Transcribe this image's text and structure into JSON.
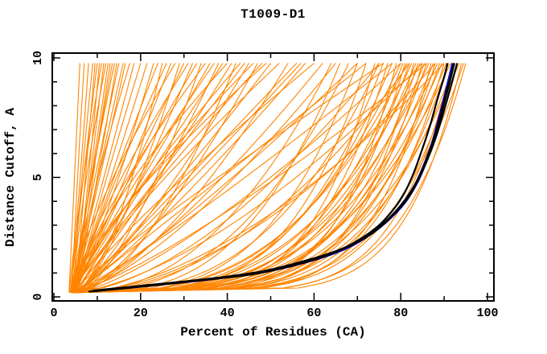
{
  "chart_data": {
    "type": "line",
    "title": "T1009-D1",
    "xlabel": "Percent of Residues (CA)",
    "ylabel": "Distance Cutoff, A",
    "xlim": [
      0,
      100
    ],
    "ylim": [
      0,
      10
    ],
    "x_major_ticks": [
      0,
      20,
      40,
      60,
      80,
      100
    ],
    "x_minor_ticks": [
      10,
      30,
      50,
      70,
      90
    ],
    "y_major_ticks": [
      0,
      5,
      10
    ],
    "y_minor_ticks": [
      1,
      2,
      3,
      4,
      6,
      7,
      8,
      9
    ],
    "grid": false,
    "legend": null,
    "colors": {
      "ensemble": "#ff8500",
      "highlight_primary": "#000000",
      "highlight_secondary": "#1111cc",
      "axis": "#000000",
      "background": "#ffffff"
    },
    "curve_y_start": 0.18,
    "curve_y_top": 9.78,
    "ensemble_curves": {
      "name": "all-model-gdt-curves",
      "color_key": "ensemble",
      "param_format": [
        "x_start_pct",
        "x_at_top_pct",
        "shape_exponent"
      ],
      "params": [
        [
          3.5,
          6,
          1.0
        ],
        [
          4.2,
          7,
          1.15
        ],
        [
          3.8,
          8,
          0.9
        ],
        [
          4.6,
          9,
          1.25
        ],
        [
          5.0,
          9.5,
          1.0
        ],
        [
          4.0,
          10,
          1.1
        ],
        [
          4.8,
          10.5,
          0.85
        ],
        [
          3.6,
          11,
          1.2
        ],
        [
          5.2,
          11.5,
          1.0
        ],
        [
          4.4,
          12,
          1.3
        ],
        [
          4.1,
          12.5,
          0.9
        ],
        [
          5.5,
          13,
          1.1
        ],
        [
          3.9,
          13.5,
          1.0
        ],
        [
          4.7,
          14,
          1.2
        ],
        [
          5.1,
          14.5,
          0.95
        ],
        [
          4.3,
          15,
          1.05
        ],
        [
          5.4,
          16,
          1.15
        ],
        [
          3.7,
          16.5,
          0.9
        ],
        [
          4.9,
          17.5,
          1.25
        ],
        [
          4.5,
          18.5,
          1.0
        ],
        [
          5.3,
          20,
          1.1
        ],
        [
          4.2,
          21.5,
          0.95
        ],
        [
          4.0,
          23,
          0.8
        ],
        [
          5.0,
          24,
          1.1
        ],
        [
          4.5,
          25,
          0.6
        ],
        [
          5.5,
          26,
          1.2
        ],
        [
          4.2,
          27,
          0.9
        ],
        [
          3.8,
          28,
          1.3
        ],
        [
          5.2,
          29,
          0.7
        ],
        [
          4.8,
          30,
          1.0
        ],
        [
          4.4,
          31,
          1.25
        ],
        [
          5.6,
          32,
          0.85
        ],
        [
          4.1,
          33,
          1.1
        ],
        [
          5.3,
          34,
          0.65
        ],
        [
          4.7,
          35,
          1.3
        ],
        [
          3.9,
          36,
          0.95
        ],
        [
          5.1,
          37,
          1.15
        ],
        [
          4.3,
          38,
          0.75
        ],
        [
          5.5,
          39,
          1.05
        ],
        [
          4.6,
          40,
          1.35
        ],
        [
          4.2,
          41,
          0.9
        ],
        [
          5.4,
          42,
          0.6
        ],
        [
          4.8,
          43,
          1.2
        ],
        [
          3.7,
          44,
          1.0
        ],
        [
          5.2,
          45,
          0.8
        ],
        [
          4.4,
          46,
          1.25
        ],
        [
          5.6,
          47,
          0.7
        ],
        [
          4.1,
          48,
          1.1
        ],
        [
          3.9,
          49,
          1.3
        ],
        [
          4.9,
          50,
          0.9
        ],
        [
          5.3,
          52,
          1.2
        ],
        [
          4.5,
          54,
          0.65
        ],
        [
          5.7,
          56,
          1.0
        ],
        [
          5.4,
          57,
          0.95
        ],
        [
          4.2,
          58,
          0.85
        ],
        [
          5.0,
          60,
          1.15
        ],
        [
          4.6,
          62,
          0.75
        ],
        [
          4.0,
          65,
          0.7
        ],
        [
          5.0,
          70,
          0.85
        ],
        [
          4.5,
          75,
          0.6
        ],
        [
          5.5,
          80,
          0.75
        ],
        [
          4.2,
          85,
          0.65
        ],
        [
          4.8,
          88,
          0.55
        ],
        [
          5.3,
          72,
          1.0
        ],
        [
          4.6,
          78,
          0.9
        ],
        [
          5.1,
          82,
          0.5
        ],
        [
          4.4,
          86,
          0.8
        ],
        [
          5.6,
          90,
          0.6
        ],
        [
          4.2,
          76,
          1.1
        ],
        [
          4.3,
          64,
          0.45
        ],
        [
          5.2,
          66,
          0.35
        ],
        [
          4.3,
          68,
          0.4
        ],
        [
          4.0,
          70,
          0.3
        ],
        [
          4.5,
          72,
          0.25
        ],
        [
          5.0,
          74,
          0.2
        ],
        [
          4.2,
          75,
          0.35
        ],
        [
          4.8,
          76,
          0.28
        ],
        [
          5.3,
          77,
          0.22
        ],
        [
          4.4,
          78,
          0.3
        ],
        [
          5.1,
          79,
          0.18
        ],
        [
          4.6,
          80,
          0.33
        ],
        [
          5.4,
          80.5,
          0.26
        ],
        [
          4.3,
          81,
          0.2
        ],
        [
          5.0,
          81.5,
          0.35
        ],
        [
          4.7,
          82,
          0.24
        ],
        [
          5.5,
          82.5,
          0.3
        ],
        [
          4.2,
          83,
          0.17
        ],
        [
          4.9,
          83.5,
          0.28
        ],
        [
          5.2,
          84,
          0.22
        ],
        [
          4.5,
          84.5,
          0.32
        ],
        [
          5.6,
          85,
          0.19
        ],
        [
          4.3,
          85.5,
          0.27
        ],
        [
          5.0,
          86,
          0.23
        ],
        [
          4.8,
          86.5,
          0.3
        ],
        [
          4.4,
          87,
          0.16
        ],
        [
          5.3,
          87.5,
          0.25
        ],
        [
          4.6,
          88,
          0.2
        ],
        [
          5.1,
          88.5,
          0.29
        ],
        [
          4.9,
          89,
          0.22
        ],
        [
          4.5,
          89.5,
          0.26
        ],
        [
          5.4,
          90,
          0.18
        ],
        [
          4.7,
          90.5,
          0.24
        ],
        [
          5.2,
          91,
          0.2
        ],
        [
          4.4,
          91.5,
          0.28
        ],
        [
          5.0,
          92,
          0.15
        ],
        [
          4.8,
          92.5,
          0.22
        ],
        [
          4.6,
          93,
          0.18
        ],
        [
          5.3,
          93.5,
          0.25
        ],
        [
          4.9,
          94,
          0.14
        ],
        [
          5.1,
          94.5,
          0.2
        ],
        [
          4.5,
          95,
          0.16
        ]
      ]
    },
    "highlight_curves": [
      {
        "id": "blue-curve-1",
        "color_key": "highlight_secondary",
        "width": 2.4,
        "points": [
          [
            8.5,
            0.23
          ],
          [
            21,
            0.45
          ],
          [
            37,
            0.75
          ],
          [
            50,
            1.1
          ],
          [
            60,
            1.55
          ],
          [
            67,
            2.0
          ],
          [
            72.5,
            2.55
          ],
          [
            77,
            3.2
          ],
          [
            80.5,
            3.9
          ],
          [
            83.3,
            4.7
          ],
          [
            85.5,
            5.6
          ],
          [
            87.3,
            6.5
          ],
          [
            88.8,
            7.5
          ],
          [
            90.2,
            8.5
          ],
          [
            91.3,
            9.3
          ],
          [
            91.9,
            9.78
          ]
        ]
      },
      {
        "id": "blue-curve-2",
        "color_key": "highlight_secondary",
        "width": 2.4,
        "points": [
          [
            9,
            0.24
          ],
          [
            22,
            0.47
          ],
          [
            38,
            0.78
          ],
          [
            51,
            1.13
          ],
          [
            61,
            1.6
          ],
          [
            68,
            2.07
          ],
          [
            73.3,
            2.65
          ],
          [
            77.7,
            3.3
          ],
          [
            81.2,
            4.0
          ],
          [
            84,
            4.85
          ],
          [
            86.1,
            5.75
          ],
          [
            87.9,
            6.65
          ],
          [
            89.3,
            7.65
          ],
          [
            90.6,
            8.6
          ],
          [
            91.6,
            9.35
          ],
          [
            92.2,
            9.78
          ]
        ]
      },
      {
        "id": "black-curve-1",
        "color_key": "highlight_primary",
        "width": 3,
        "points": [
          [
            9,
            0.25
          ],
          [
            20,
            0.45
          ],
          [
            36,
            0.75
          ],
          [
            48,
            1.05
          ],
          [
            58,
            1.5
          ],
          [
            65,
            1.9
          ],
          [
            70,
            2.3
          ],
          [
            75,
            2.9
          ],
          [
            79,
            3.6
          ],
          [
            82,
            4.3
          ],
          [
            84.5,
            5.1
          ],
          [
            86.5,
            6.0
          ],
          [
            88,
            6.8
          ],
          [
            89.5,
            7.8
          ],
          [
            90.8,
            8.7
          ],
          [
            91.8,
            9.4
          ],
          [
            92.3,
            9.78
          ]
        ]
      },
      {
        "id": "black-curve-2",
        "color_key": "highlight_primary",
        "width": 2.2,
        "points": [
          [
            10,
            0.25
          ],
          [
            24,
            0.5
          ],
          [
            40,
            0.85
          ],
          [
            52,
            1.2
          ],
          [
            62,
            1.7
          ],
          [
            69,
            2.2
          ],
          [
            74,
            2.8
          ],
          [
            78,
            3.4
          ],
          [
            81.5,
            4.1
          ],
          [
            84,
            4.9
          ],
          [
            86.5,
            5.9
          ],
          [
            88.5,
            6.9
          ],
          [
            90.3,
            8.0
          ],
          [
            92,
            9.1
          ],
          [
            93,
            9.78
          ]
        ]
      },
      {
        "id": "black-curve-3",
        "color_key": "highlight_primary",
        "width": 2.2,
        "points": [
          [
            8,
            0.22
          ],
          [
            18,
            0.4
          ],
          [
            33,
            0.68
          ],
          [
            46,
            0.95
          ],
          [
            56,
            1.35
          ],
          [
            64,
            1.8
          ],
          [
            70,
            2.35
          ],
          [
            75,
            3.0
          ],
          [
            78.5,
            3.7
          ],
          [
            81,
            4.4
          ],
          [
            83,
            5.2
          ],
          [
            85,
            6.2
          ],
          [
            86.8,
            7.2
          ],
          [
            88.5,
            8.3
          ],
          [
            90,
            9.2
          ],
          [
            90.8,
            9.78
          ]
        ]
      }
    ]
  }
}
